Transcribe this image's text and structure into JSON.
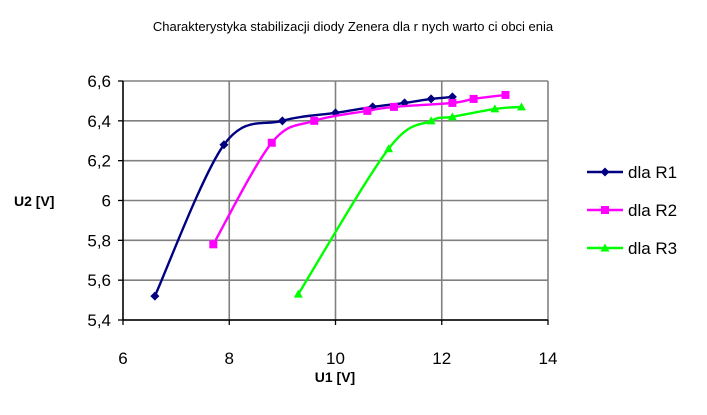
{
  "chart_data": {
    "type": "line",
    "title": "Charakterystyka stabilizacji diody Zenera dla r    nych warto  ci obci    enia",
    "xlabel": "U1 [V]",
    "ylabel": "U2 [V]",
    "xlim": [
      6,
      14
    ],
    "ylim": [
      5.4,
      6.6
    ],
    "xticks": [
      6,
      8,
      10,
      12,
      14
    ],
    "xtick_labels": [
      "6",
      "8",
      "10",
      "12",
      "14"
    ],
    "yticks": [
      5.4,
      5.6,
      5.8,
      6.0,
      6.2,
      6.4,
      6.6
    ],
    "ytick_labels": [
      "5,4",
      "5,6",
      "5,8",
      "6",
      "6,2",
      "6,4",
      "6,6"
    ],
    "grid": true,
    "legend_position": "right",
    "series": [
      {
        "name": "dla R1",
        "color": "#000080",
        "marker": "diamond",
        "x": [
          6.6,
          7.9,
          9.0,
          10.0,
          10.7,
          11.3,
          11.8,
          12.2
        ],
        "y": [
          5.52,
          6.28,
          6.4,
          6.44,
          6.47,
          6.49,
          6.51,
          6.52
        ]
      },
      {
        "name": "dla R2",
        "color": "#FF00FF",
        "marker": "square",
        "x": [
          7.7,
          8.8,
          9.6,
          10.6,
          11.1,
          12.2,
          12.6,
          13.2
        ],
        "y": [
          5.78,
          6.29,
          6.4,
          6.45,
          6.47,
          6.49,
          6.51,
          6.53
        ]
      },
      {
        "name": "dla R3",
        "color": "#00FF00",
        "marker": "triangle",
        "x": [
          9.3,
          11.0,
          11.8,
          12.2,
          13.0,
          13.5
        ],
        "y": [
          5.53,
          6.26,
          6.4,
          6.42,
          6.46,
          6.47
        ]
      }
    ]
  }
}
